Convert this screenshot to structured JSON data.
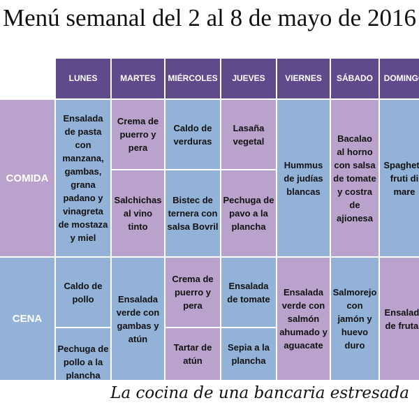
{
  "title": "Menú semanal del 2 al 8 de mayo de 2016",
  "days": [
    "LUNES",
    "MARTES",
    "MIÉRCOLES",
    "JUEVES",
    "VIERNES",
    "SÁBADO",
    "DOMINGO"
  ],
  "rows": {
    "comida": "COMIDA",
    "cena": "CENA"
  },
  "comida": {
    "lunes": "Ensalada de pasta con manzana, gambas, grana padano y vinagreta de mostaza y miel",
    "martes_1": "Crema de puerro y pera",
    "martes_2": "Salchichas al vino tinto",
    "miercoles_1": "Caldo de verduras",
    "miercoles_2": "Bistec de ternera con salsa Bovril",
    "jueves_1": "Lasaña vegetal",
    "jueves_2": "Pechuga de pavo a la plancha",
    "viernes": "Hummus de judías blancas",
    "sabado": "Bacalao al horno con salsa de tomate y costra de ajionesa",
    "domingo": "Spaghetti fruti di mare"
  },
  "cena": {
    "lunes_1": "Caldo de pollo",
    "lunes_2": "Pechuga de pollo a la plancha",
    "martes": "Ensalada verde con gambas y atún",
    "miercoles_1": "Crema de puerro y pera",
    "miercoles_2": "Tartar de atún",
    "jueves_1": "Ensalada de tomate",
    "jueves_2": "Sepia a la plancha",
    "viernes": "Ensalada verde con salmón ahumado y aguacate",
    "sabado": "Salmorejo con jamón y huevo duro",
    "domingo": "Ensalada de frutas"
  },
  "footer": "La cocina de una bancaria estresada",
  "colors": {
    "header": "#5f4b8b",
    "purple": "#b9a3cc",
    "blue": "#93b2d8"
  }
}
